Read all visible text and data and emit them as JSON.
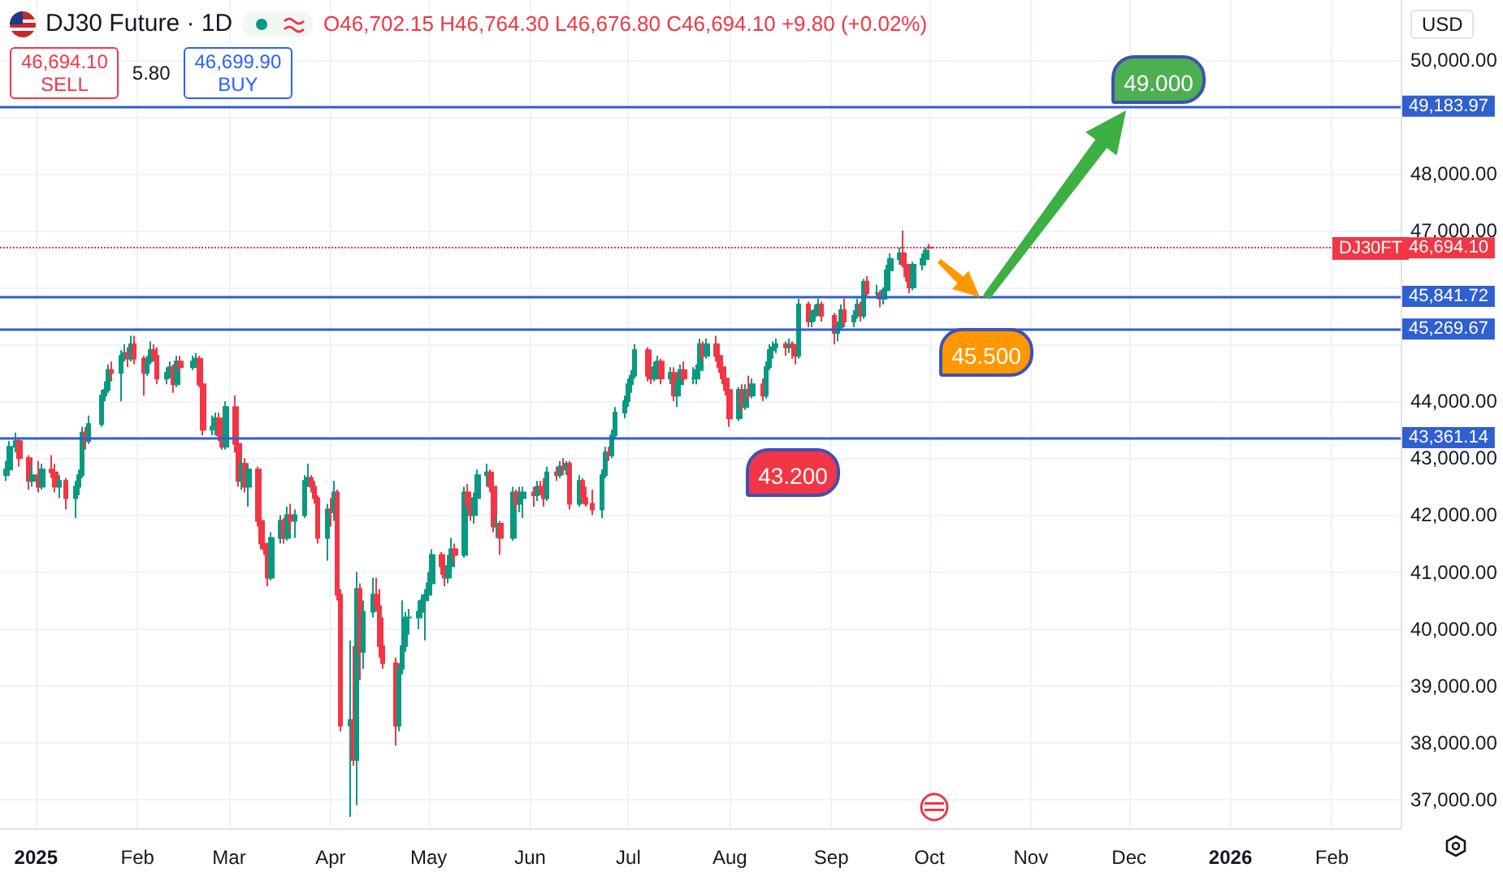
{
  "chart_data": {
    "type": "candlestick",
    "title": "DJ30 Future · 1D",
    "subtitle": "O46,702.15 H46,764.30 L46,676.80 C46,694.10 +9.80 (+0.02%)",
    "annotations": [
      "46,694.10",
      "SELL",
      "5.80",
      "46,699.90",
      "BUY",
      "USD",
      "DJ30FT",
      "49.000",
      "45.500",
      "43.200"
    ],
    "x": [
      "2024-12-23",
      "2024-12-24",
      "2024-12-26",
      "2024-12-27",
      "2024-12-30",
      "2024-12-31",
      "2025-01-02",
      "2025-01-03",
      "2025-01-06",
      "2025-01-07",
      "2025-01-08",
      "2025-01-10",
      "2025-01-13",
      "2025-01-14",
      "2025-01-15",
      "2025-01-16",
      "2025-01-17",
      "2025-01-21",
      "2025-01-22",
      "2025-01-23",
      "2025-01-24",
      "2025-01-27",
      "2025-01-28",
      "2025-01-29",
      "2025-01-30",
      "2025-01-31",
      "2025-02-03",
      "2025-02-04",
      "2025-02-05",
      "2025-02-06",
      "2025-02-07",
      "2025-02-10",
      "2025-02-11",
      "2025-02-12",
      "2025-02-13",
      "2025-02-14",
      "2025-02-18",
      "2025-02-19",
      "2025-02-20",
      "2025-02-21",
      "2025-02-24",
      "2025-02-25",
      "2025-02-26",
      "2025-02-27",
      "2025-02-28",
      "2025-03-03",
      "2025-03-04",
      "2025-03-05",
      "2025-03-06",
      "2025-03-07",
      "2025-03-10",
      "2025-03-11",
      "2025-03-12",
      "2025-03-13",
      "2025-03-14",
      "2025-03-17",
      "2025-03-18",
      "2025-03-19",
      "2025-03-20",
      "2025-03-21",
      "2025-03-24",
      "2025-03-25",
      "2025-03-26",
      "2025-03-27",
      "2025-03-28",
      "2025-03-31",
      "2025-04-01",
      "2025-04-02",
      "2025-04-03",
      "2025-04-04",
      "2025-04-07",
      "2025-04-08",
      "2025-04-09",
      "2025-04-10",
      "2025-04-11",
      "2025-04-14",
      "2025-04-15",
      "2025-04-16",
      "2025-04-17",
      "2025-04-21",
      "2025-04-22",
      "2025-04-23",
      "2025-04-24",
      "2025-04-25",
      "2025-04-28",
      "2025-04-29",
      "2025-04-30",
      "2025-05-01",
      "2025-05-02",
      "2025-05-05",
      "2025-05-06",
      "2025-05-07",
      "2025-05-08",
      "2025-05-09",
      "2025-05-12",
      "2025-05-13",
      "2025-05-14",
      "2025-05-15",
      "2025-05-16",
      "2025-05-19",
      "2025-05-20",
      "2025-05-21",
      "2025-05-22",
      "2025-05-23",
      "2025-05-27",
      "2025-05-28",
      "2025-05-29",
      "2025-05-30",
      "2025-06-02",
      "2025-06-03",
      "2025-06-04",
      "2025-06-05",
      "2025-06-06",
      "2025-06-09",
      "2025-06-10",
      "2025-06-11",
      "2025-06-12",
      "2025-06-13",
      "2025-06-16",
      "2025-06-17",
      "2025-06-18",
      "2025-06-20",
      "2025-06-23",
      "2025-06-24",
      "2025-06-25",
      "2025-06-26",
      "2025-06-27",
      "2025-06-30",
      "2025-07-01",
      "2025-07-02",
      "2025-07-03",
      "2025-07-07",
      "2025-07-08",
      "2025-07-09",
      "2025-07-10",
      "2025-07-11",
      "2025-07-14",
      "2025-07-15",
      "2025-07-16",
      "2025-07-17",
      "2025-07-18",
      "2025-07-21",
      "2025-07-22",
      "2025-07-23",
      "2025-07-24",
      "2025-07-25",
      "2025-07-28",
      "2025-07-29",
      "2025-07-30",
      "2025-07-31",
      "2025-08-01",
      "2025-08-04",
      "2025-08-05",
      "2025-08-06",
      "2025-08-07",
      "2025-08-08",
      "2025-08-11",
      "2025-08-12",
      "2025-08-13",
      "2025-08-14",
      "2025-08-15",
      "2025-08-18",
      "2025-08-19",
      "2025-08-20",
      "2025-08-21",
      "2025-08-22",
      "2025-08-25",
      "2025-08-26",
      "2025-08-27",
      "2025-08-28",
      "2025-08-29",
      "2025-09-02",
      "2025-09-03",
      "2025-09-04",
      "2025-09-05",
      "2025-09-08",
      "2025-09-09",
      "2025-09-10",
      "2025-09-11",
      "2025-09-12",
      "2025-09-15",
      "2025-09-16",
      "2025-09-17",
      "2025-09-18",
      "2025-09-19",
      "2025-09-22",
      "2025-09-23",
      "2025-09-24",
      "2025-09-25",
      "2025-09-26",
      "2025-09-29",
      "2025-09-30",
      "2025-10-01"
    ],
    "ohlc": [
      [
        42700,
        42950,
        42600,
        42800
      ],
      [
        42800,
        43300,
        42750,
        43200
      ],
      [
        43200,
        43450,
        43100,
        43300
      ],
      [
        43300,
        43350,
        42850,
        43000
      ],
      [
        43000,
        43050,
        42450,
        42600
      ],
      [
        42600,
        42900,
        42500,
        42700
      ],
      [
        42700,
        42950,
        42400,
        42500
      ],
      [
        42500,
        42900,
        42450,
        42800
      ],
      [
        42800,
        43050,
        42650,
        42750
      ],
      [
        42750,
        42900,
        42400,
        42500
      ],
      [
        42500,
        42700,
        42300,
        42600
      ],
      [
        42600,
        42650,
        42100,
        42300
      ],
      [
        42300,
        42600,
        41950,
        42500
      ],
      [
        42500,
        42800,
        42350,
        42700
      ],
      [
        42700,
        43550,
        42650,
        43450
      ],
      [
        43450,
        43550,
        43150,
        43300
      ],
      [
        43300,
        43750,
        43250,
        43600
      ],
      [
        43600,
        44200,
        43550,
        44100
      ],
      [
        44100,
        44350,
        44000,
        44200
      ],
      [
        44200,
        44650,
        44150,
        44550
      ],
      [
        44550,
        44700,
        44350,
        44500
      ],
      [
        44500,
        44900,
        44000,
        44800
      ],
      [
        44800,
        45000,
        44700,
        44850
      ],
      [
        44850,
        44950,
        44600,
        44750
      ],
      [
        44750,
        45150,
        44700,
        45000
      ],
      [
        45000,
        45150,
        44650,
        44750
      ],
      [
        44750,
        44800,
        44100,
        44500
      ],
      [
        44500,
        44800,
        44450,
        44700
      ],
      [
        44700,
        45050,
        44650,
        44900
      ],
      [
        44900,
        45000,
        44700,
        44800
      ],
      [
        44800,
        44950,
        44300,
        44400
      ],
      [
        44400,
        44600,
        44300,
        44500
      ],
      [
        44500,
        44700,
        44400,
        44600
      ],
      [
        44600,
        44650,
        44150,
        44300
      ],
      [
        44300,
        44800,
        44250,
        44700
      ],
      [
        44700,
        44800,
        44500,
        44600
      ],
      [
        44600,
        44800,
        44550,
        44700
      ],
      [
        44700,
        44850,
        44600,
        44750
      ],
      [
        44750,
        44800,
        44250,
        44300
      ],
      [
        44300,
        44350,
        43400,
        43500
      ],
      [
        43500,
        43750,
        43400,
        43550
      ],
      [
        43550,
        43800,
        43400,
        43700
      ],
      [
        43700,
        43800,
        43300,
        43400
      ],
      [
        43400,
        43650,
        43150,
        43200
      ],
      [
        43200,
        44000,
        43150,
        43900
      ],
      [
        43900,
        44100,
        43100,
        43250
      ],
      [
        43250,
        43350,
        42500,
        42600
      ],
      [
        42600,
        43000,
        42450,
        42900
      ],
      [
        42900,
        43000,
        42400,
        42500
      ],
      [
        42500,
        42900,
        42150,
        42800
      ],
      [
        42800,
        42850,
        41800,
        41900
      ],
      [
        41900,
        42100,
        41400,
        41500
      ],
      [
        41500,
        41850,
        41300,
        41400
      ],
      [
        41400,
        41500,
        40750,
        40900
      ],
      [
        40900,
        41700,
        40850,
        41600
      ],
      [
        41600,
        42000,
        41500,
        41900
      ],
      [
        41900,
        41950,
        41500,
        41600
      ],
      [
        41600,
        42150,
        41550,
        42000
      ],
      [
        42000,
        42200,
        41700,
        41900
      ],
      [
        41900,
        42100,
        41600,
        42000
      ],
      [
        42000,
        42700,
        41950,
        42600
      ],
      [
        42600,
        42900,
        42500,
        42650
      ],
      [
        42650,
        42700,
        42400,
        42500
      ],
      [
        42500,
        42600,
        42200,
        42300
      ],
      [
        42300,
        42350,
        41500,
        41600
      ],
      [
        41600,
        42200,
        41200,
        42100
      ],
      [
        42100,
        42300,
        41800,
        42050
      ],
      [
        42050,
        42600,
        41900,
        42400
      ],
      [
        42400,
        42450,
        40500,
        40600
      ],
      [
        40600,
        40700,
        38200,
        38300
      ],
      [
        38300,
        39800,
        36700,
        38400
      ],
      [
        38400,
        39700,
        37600,
        37700
      ],
      [
        37700,
        41000,
        36900,
        40700
      ],
      [
        40700,
        40800,
        39100,
        39600
      ],
      [
        39600,
        40500,
        39300,
        40300
      ],
      [
        40300,
        40900,
        40200,
        40600
      ],
      [
        40600,
        40900,
        40300,
        40400
      ],
      [
        40400,
        40700,
        39500,
        39700
      ],
      [
        39700,
        40200,
        39300,
        39400
      ],
      [
        39400,
        39500,
        37950,
        38300
      ],
      [
        38300,
        39400,
        38200,
        39300
      ],
      [
        39300,
        40500,
        39200,
        39700
      ],
      [
        39700,
        40300,
        39600,
        40200
      ],
      [
        40200,
        40350,
        39900,
        40200
      ],
      [
        40200,
        40500,
        40000,
        40300
      ],
      [
        40300,
        40600,
        40200,
        40500
      ],
      [
        40500,
        40700,
        39800,
        40600
      ],
      [
        40600,
        41000,
        40500,
        40800
      ],
      [
        40800,
        41400,
        40750,
        41300
      ],
      [
        41300,
        41350,
        40950,
        41100
      ],
      [
        41100,
        41200,
        40750,
        40900
      ],
      [
        40900,
        41300,
        40800,
        41100
      ],
      [
        41100,
        41600,
        41000,
        41400
      ],
      [
        41400,
        41500,
        41150,
        41300
      ],
      [
        41300,
        42500,
        41250,
        42400
      ],
      [
        42400,
        42550,
        42100,
        42200
      ],
      [
        42200,
        42350,
        41900,
        42000
      ],
      [
        42000,
        42400,
        41850,
        42300
      ],
      [
        42300,
        42800,
        42250,
        42700
      ],
      [
        42700,
        42900,
        42500,
        42750
      ],
      [
        42750,
        42800,
        42400,
        42500
      ],
      [
        42500,
        42550,
        41700,
        41800
      ],
      [
        41800,
        42000,
        41600,
        41850
      ],
      [
        41850,
        41900,
        41300,
        41600
      ],
      [
        41600,
        42500,
        41550,
        42400
      ],
      [
        42400,
        42450,
        42100,
        42200
      ],
      [
        42200,
        42500,
        42050,
        42300
      ],
      [
        42300,
        42500,
        41950,
        42400
      ],
      [
        42400,
        42500,
        42150,
        42350
      ],
      [
        42350,
        42600,
        42250,
        42500
      ],
      [
        42500,
        42600,
        42350,
        42450
      ],
      [
        42450,
        42650,
        42150,
        42300
      ],
      [
        42300,
        42850,
        42250,
        42750
      ],
      [
        42750,
        42850,
        42600,
        42700
      ],
      [
        42700,
        42950,
        42650,
        42850
      ],
      [
        42850,
        43000,
        42700,
        42800
      ],
      [
        42800,
        42950,
        42700,
        42900
      ],
      [
        42900,
        42950,
        42100,
        42200
      ],
      [
        42200,
        42700,
        42150,
        42600
      ],
      [
        42600,
        42650,
        42200,
        42300
      ],
      [
        42300,
        42500,
        42150,
        42200
      ],
      [
        42200,
        42450,
        42000,
        42100
      ],
      [
        42100,
        42800,
        41950,
        42700
      ],
      [
        42700,
        43200,
        42650,
        43100
      ],
      [
        43100,
        43200,
        42950,
        43050
      ],
      [
        43050,
        43500,
        43000,
        43400
      ],
      [
        43400,
        43900,
        43350,
        43800
      ],
      [
        43800,
        44100,
        43700,
        44000
      ],
      [
        44000,
        44400,
        43900,
        44300
      ],
      [
        44300,
        44550,
        44150,
        44450
      ],
      [
        44450,
        45000,
        44400,
        44900
      ],
      [
        44900,
        44950,
        44350,
        44450
      ],
      [
        44450,
        44550,
        44300,
        44400
      ],
      [
        44400,
        44700,
        44350,
        44600
      ],
      [
        44600,
        44800,
        44500,
        44700
      ],
      [
        44700,
        44750,
        44300,
        44400
      ],
      [
        44400,
        44600,
        44300,
        44500
      ],
      [
        44500,
        44600,
        44000,
        44100
      ],
      [
        44100,
        44450,
        43900,
        44300
      ],
      [
        44300,
        44650,
        44250,
        44550
      ],
      [
        44550,
        44700,
        44350,
        44400
      ],
      [
        44400,
        44600,
        44300,
        44400
      ],
      [
        44400,
        44650,
        44300,
        44550
      ],
      [
        44550,
        45100,
        44500,
        45000
      ],
      [
        45000,
        45050,
        44700,
        44800
      ],
      [
        44800,
        45100,
        44750,
        45000
      ],
      [
        45000,
        45150,
        44700,
        44800
      ],
      [
        44800,
        44850,
        44500,
        44600
      ],
      [
        44600,
        44750,
        44300,
        44400
      ],
      [
        44400,
        44550,
        44100,
        44200
      ],
      [
        44200,
        44250,
        43550,
        43700
      ],
      [
        43700,
        44250,
        43650,
        44200
      ],
      [
        44200,
        44300,
        43800,
        43900
      ],
      [
        43900,
        44300,
        43850,
        44200
      ],
      [
        44200,
        44450,
        44000,
        44100
      ],
      [
        44100,
        44400,
        44050,
        44300
      ],
      [
        44300,
        44400,
        44000,
        44100
      ],
      [
        44100,
        44700,
        44050,
        44600
      ],
      [
        44600,
        45000,
        44550,
        44900
      ],
      [
        44900,
        45050,
        44750,
        44950
      ],
      [
        44950,
        45100,
        44850,
        45000
      ],
      [
        45000,
        45050,
        44800,
        44950
      ],
      [
        44950,
        45100,
        44850,
        45000
      ],
      [
        45000,
        45050,
        44750,
        44950
      ],
      [
        44950,
        45000,
        44650,
        44800
      ],
      [
        44800,
        45800,
        44750,
        45700
      ],
      [
        45700,
        45750,
        45300,
        45400
      ],
      [
        45400,
        45600,
        45300,
        45500
      ],
      [
        45500,
        45700,
        45400,
        45600
      ],
      [
        45600,
        45800,
        45500,
        45700
      ],
      [
        45700,
        45750,
        45400,
        45500
      ],
      [
        45500,
        45550,
        45000,
        45200
      ],
      [
        45200,
        45400,
        45050,
        45300
      ],
      [
        45300,
        45700,
        45250,
        45600
      ],
      [
        45600,
        45800,
        45300,
        45400
      ],
      [
        45400,
        45600,
        45300,
        45500
      ],
      [
        45500,
        45800,
        45450,
        45700
      ],
      [
        45700,
        45750,
        45400,
        45500
      ],
      [
        45500,
        46150,
        45450,
        46100
      ],
      [
        46100,
        46200,
        45850,
        45900
      ],
      [
        45900,
        46050,
        45800,
        45900
      ],
      [
        45900,
        45950,
        45650,
        45800
      ],
      [
        45800,
        46000,
        45700,
        45950
      ],
      [
        45950,
        46400,
        45900,
        46300
      ],
      [
        46300,
        46600,
        46250,
        46500
      ],
      [
        46500,
        46700,
        46400,
        46600
      ],
      [
        46600,
        47000,
        46350,
        46400
      ],
      [
        46400,
        46500,
        46100,
        46200
      ],
      [
        46200,
        46300,
        45900,
        46000
      ],
      [
        46000,
        46450,
        45950,
        46400
      ],
      [
        46400,
        46600,
        46300,
        46500
      ],
      [
        46500,
        46700,
        46400,
        46650
      ],
      [
        46702.15,
        46764.3,
        46676.8,
        46694.1
      ]
    ],
    "xlim": [
      "2024-12-21",
      "2026-02-22"
    ],
    "xticks": [
      {
        "value": "2025-01-01",
        "label": "2025"
      },
      {
        "value": "2025-02-01",
        "label": "Feb"
      },
      {
        "value": "2025-03-01",
        "label": "Mar"
      },
      {
        "value": "2025-04-01",
        "label": "Apr"
      },
      {
        "value": "2025-05-01",
        "label": "May"
      },
      {
        "value": "2025-06-01",
        "label": "Jun"
      },
      {
        "value": "2025-07-01",
        "label": "Jul"
      },
      {
        "value": "2025-08-01",
        "label": "Aug"
      },
      {
        "value": "2025-09-01",
        "label": "Sep"
      },
      {
        "value": "2025-10-01",
        "label": "Oct"
      },
      {
        "value": "2025-11-01",
        "label": "Nov"
      },
      {
        "value": "2025-12-01",
        "label": "Dec"
      },
      {
        "value": "2026-01-01",
        "label": "2026"
      },
      {
        "value": "2026-02-01",
        "label": "Feb"
      }
    ],
    "ylim": [
      36500,
      51050
    ],
    "yticks": [
      {
        "value": 37000,
        "label": "37,000.00"
      },
      {
        "value": 38000,
        "label": "38,000.00"
      },
      {
        "value": 39000,
        "label": "39,000.00"
      },
      {
        "value": 40000,
        "label": "40,000.00"
      },
      {
        "value": 41000,
        "label": "41,000.00"
      },
      {
        "value": 42000,
        "label": "42,000.00"
      },
      {
        "value": 43000,
        "label": "43,000.00"
      },
      {
        "value": 44000,
        "label": "44,000.00"
      },
      {
        "value": 45000,
        "label": null
      },
      {
        "value": 46000,
        "label": null
      },
      {
        "value": 47000,
        "label": "47,000.00"
      },
      {
        "value": 48000,
        "label": "48,000.00"
      },
      {
        "value": 49000,
        "label": null
      },
      {
        "value": 50000,
        "label": "50,000.00"
      }
    ],
    "ref_lines": [
      {
        "axis": "y",
        "value": 49183.97,
        "label": "49,183.97",
        "color": "#2f5fd0"
      },
      {
        "axis": "y",
        "value": 45841.72,
        "label": "45,841.72",
        "color": "#2f5fd0"
      },
      {
        "axis": "y",
        "value": 45269.67,
        "label": "45,269.67",
        "color": "#2f5fd0"
      },
      {
        "axis": "y",
        "value": 43361.14,
        "label": "43,361.14",
        "color": "#2f5fd0"
      },
      {
        "axis": "y",
        "value": 46694.1,
        "label": "46,694.10",
        "color": "#f23645",
        "line_style": "dotted"
      }
    ],
    "grid": true
  }
}
